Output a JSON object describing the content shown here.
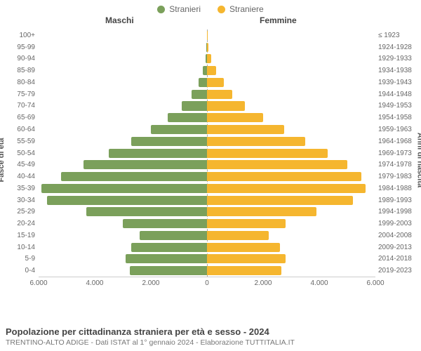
{
  "legend": {
    "male": {
      "label": "Stranieri",
      "color": "#7ba05b"
    },
    "female": {
      "label": "Straniere",
      "color": "#f5b62f"
    }
  },
  "headers": {
    "male": "Maschi",
    "female": "Femmine"
  },
  "axis_labels": {
    "left": "Fasce di età",
    "right": "Anni di nascita"
  },
  "chart": {
    "type": "population-pyramid",
    "max_value": 6000,
    "xticks_left": [
      6000,
      4000,
      2000,
      0
    ],
    "xticks_right": [
      0,
      2000,
      4000,
      6000
    ],
    "xtick_labels_left": [
      "6.000",
      "4.000",
      "2.000",
      "0"
    ],
    "xtick_labels_right": [
      "0",
      "2.000",
      "4.000",
      "6.000"
    ],
    "male_color": "#7ba05b",
    "female_color": "#f5b62f",
    "gridline_color": "#cccccc",
    "background_color": "#ffffff",
    "bar_height_ratio": 0.78,
    "rows": [
      {
        "age": "100+",
        "year": "≤ 1923",
        "m": 10,
        "f": 20
      },
      {
        "age": "95-99",
        "year": "1924-1928",
        "m": 25,
        "f": 60
      },
      {
        "age": "90-94",
        "year": "1929-1933",
        "m": 60,
        "f": 140
      },
      {
        "age": "85-89",
        "year": "1934-1938",
        "m": 160,
        "f": 320
      },
      {
        "age": "80-84",
        "year": "1939-1943",
        "m": 300,
        "f": 600
      },
      {
        "age": "75-79",
        "year": "1944-1948",
        "m": 550,
        "f": 900
      },
      {
        "age": "70-74",
        "year": "1949-1953",
        "m": 900,
        "f": 1350
      },
      {
        "age": "65-69",
        "year": "1954-1958",
        "m": 1400,
        "f": 2000
      },
      {
        "age": "60-64",
        "year": "1959-1963",
        "m": 2000,
        "f": 2750
      },
      {
        "age": "55-59",
        "year": "1964-1968",
        "m": 2700,
        "f": 3500
      },
      {
        "age": "50-54",
        "year": "1969-1973",
        "m": 3500,
        "f": 4300
      },
      {
        "age": "45-49",
        "year": "1974-1978",
        "m": 4400,
        "f": 5000
      },
      {
        "age": "40-44",
        "year": "1979-1983",
        "m": 5200,
        "f": 5500
      },
      {
        "age": "35-39",
        "year": "1984-1988",
        "m": 5900,
        "f": 5650
      },
      {
        "age": "30-34",
        "year": "1989-1993",
        "m": 5700,
        "f": 5200
      },
      {
        "age": "25-29",
        "year": "1994-1998",
        "m": 4300,
        "f": 3900
      },
      {
        "age": "20-24",
        "year": "1999-2003",
        "m": 3000,
        "f": 2800
      },
      {
        "age": "15-19",
        "year": "2004-2008",
        "m": 2400,
        "f": 2200
      },
      {
        "age": "10-14",
        "year": "2009-2013",
        "m": 2700,
        "f": 2600
      },
      {
        "age": "5-9",
        "year": "2014-2018",
        "m": 2900,
        "f": 2800
      },
      {
        "age": "0-4",
        "year": "2019-2023",
        "m": 2750,
        "f": 2650
      }
    ]
  },
  "footer": {
    "title": "Popolazione per cittadinanza straniera per età e sesso - 2024",
    "subtitle": "TRENTINO-ALTO ADIGE - Dati ISTAT al 1° gennaio 2024 - Elaborazione TUTTITALIA.IT"
  }
}
